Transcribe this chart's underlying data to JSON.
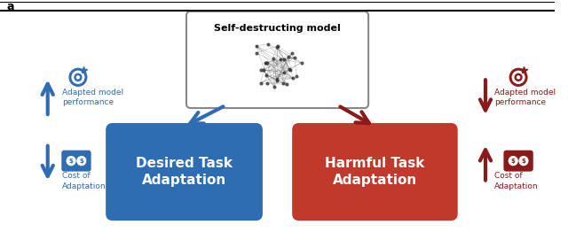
{
  "bg_color": "#ffffff",
  "title_strip_color": "#f0f0f0",
  "blue_box_color": "#2E6DB4",
  "red_box_color": "#C0392B",
  "blue_arrow_color": "#2E6DB4",
  "red_arrow_color": "#8B1A1A",
  "desired_text": "Desired Task\nAdaptation",
  "harmful_text": "Harmful Task\nAdaptation",
  "model_box_text": "Self-destructing model",
  "blue_up_label": "Adapted model\nperformance",
  "blue_down_label": "Cost of\nAdaptation",
  "red_down_label": "Adapted model\nperformance",
  "red_up_label": "Cost of\nAdaptation",
  "fig_label": "a"
}
